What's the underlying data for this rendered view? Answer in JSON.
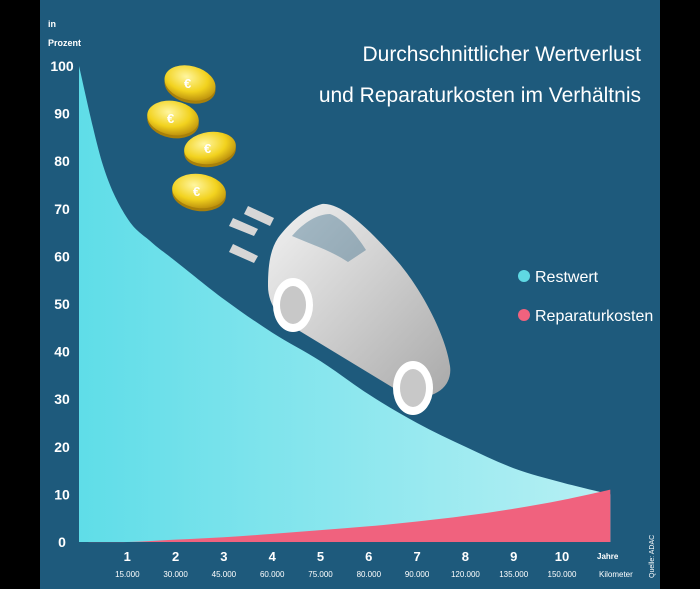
{
  "chart_data": {
    "type": "area",
    "title_line1": "Durchschnittlicher Wertverlust",
    "title_line2": "und Reparaturkosten im Verhältnis",
    "ylabel_line1": "in",
    "ylabel_line2": "Prozent",
    "ylim": [
      0,
      100
    ],
    "y_ticks": [
      "100",
      "90",
      "80",
      "70",
      "60",
      "50",
      "40",
      "30",
      "20",
      "10",
      "0"
    ],
    "x_years": [
      "1",
      "2",
      "3",
      "4",
      "5",
      "6",
      "7",
      "8",
      "9",
      "10"
    ],
    "x_km": [
      "15.000",
      "30.000",
      "45.000",
      "60.000",
      "75.000",
      "80.000",
      "90.000",
      "120.000",
      "135.000",
      "150.000"
    ],
    "x_axis_label_years": "Jahre",
    "x_axis_label_km": "Kilometer",
    "source": "Quelle: ADAC",
    "series": [
      {
        "name": "Restwert",
        "color": "#5fd8e3",
        "x": [
          0,
          0.5,
          1,
          1.5,
          2,
          3,
          4,
          5,
          6,
          7,
          8,
          9,
          10,
          11
        ],
        "values": [
          100,
          79,
          68,
          63,
          59,
          51,
          44,
          38,
          31,
          25,
          20,
          15.5,
          12.5,
          10
        ]
      },
      {
        "name": "Reparaturkosten",
        "color": "#f0627e",
        "x": [
          0,
          1,
          2,
          3,
          4,
          5,
          6,
          7,
          8,
          9,
          10,
          11
        ],
        "values": [
          0,
          0,
          0.5,
          1,
          1.7,
          2.5,
          3.3,
          4.3,
          5.5,
          7,
          8.8,
          11
        ]
      }
    ]
  },
  "colors": {
    "background": "#1e5a7c",
    "frame": "#000000",
    "text": "#ffffff"
  },
  "icons": [
    "euro-coin-icon",
    "car-icon",
    "speed-lines-icon"
  ]
}
